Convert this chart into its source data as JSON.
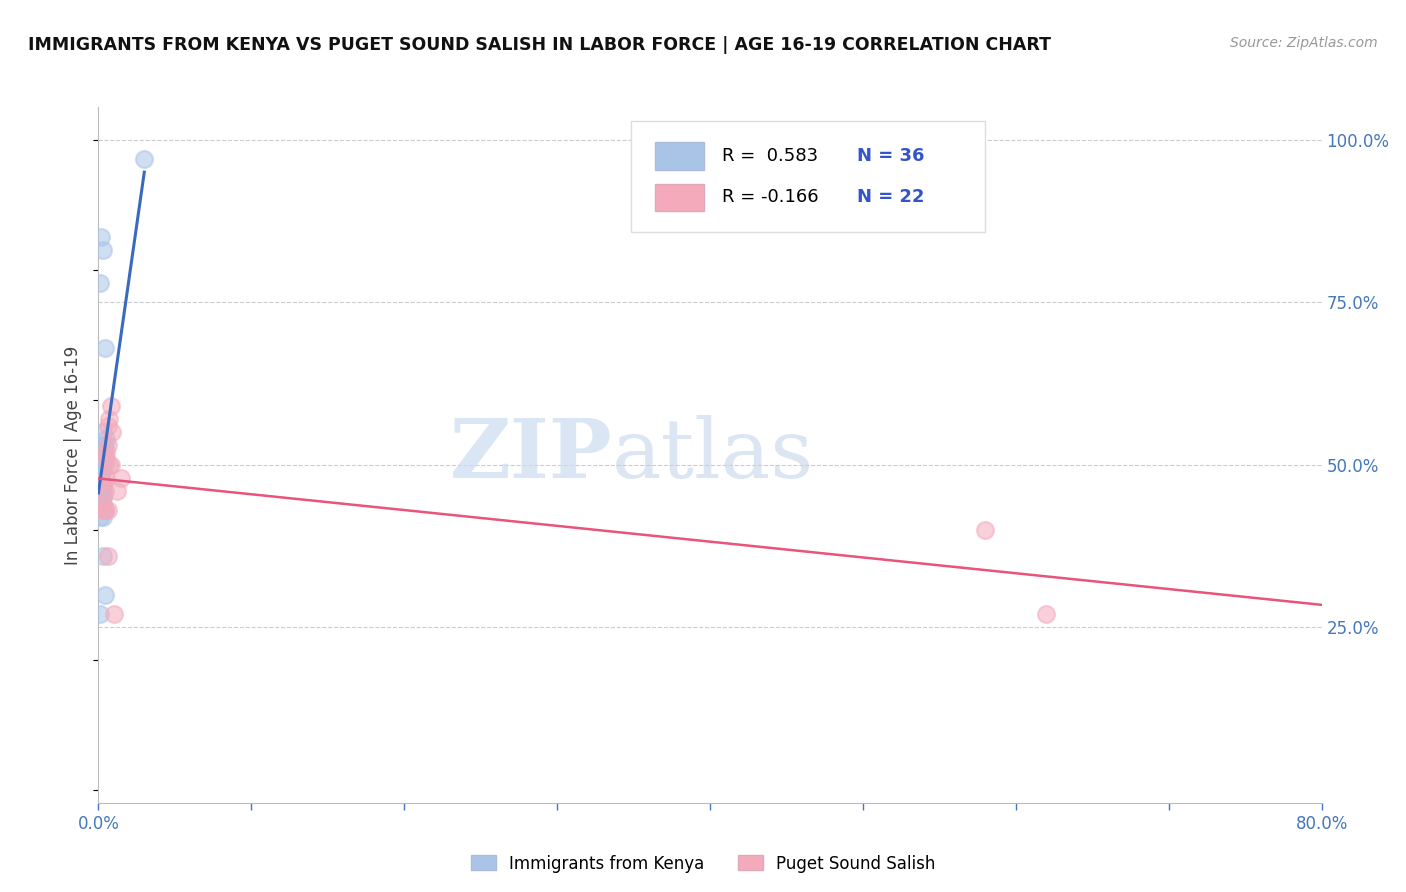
{
  "title": "IMMIGRANTS FROM KENYA VS PUGET SOUND SALISH IN LABOR FORCE | AGE 16-19 CORRELATION CHART",
  "source": "Source: ZipAtlas.com",
  "ylabel": "In Labor Force | Age 16-19",
  "xlim": [
    0.0,
    0.8
  ],
  "ylim": [
    -0.02,
    1.05
  ],
  "xticks": [
    0.0,
    0.1,
    0.2,
    0.3,
    0.4,
    0.5,
    0.6,
    0.7,
    0.8
  ],
  "xticklabels": [
    "0.0%",
    "",
    "",
    "",
    "",
    "",
    "",
    "",
    "80.0%"
  ],
  "yticks_right": [
    0.25,
    0.5,
    0.75,
    1.0
  ],
  "yticklabels_right": [
    "25.0%",
    "50.0%",
    "75.0%",
    "100.0%"
  ],
  "grid_color": "#cccccc",
  "background_color": "#ffffff",
  "watermark_zip": "ZIP",
  "watermark_atlas": "atlas",
  "legend_r1_label": "R =  0.583",
  "legend_r1_n": "N = 36",
  "legend_r2_label": "R = -0.166",
  "legend_r2_n": "N = 22",
  "blue_color": "#aac4e8",
  "pink_color": "#f4aabb",
  "blue_line_color": "#3a6abf",
  "pink_line_color": "#e8547a",
  "kenya_x": [
    0.001,
    0.003,
    0.004,
    0.002,
    0.001,
    0.002,
    0.003,
    0.003,
    0.004,
    0.005,
    0.002,
    0.003,
    0.004,
    0.003,
    0.002,
    0.001,
    0.004,
    0.002,
    0.003,
    0.003,
    0.002,
    0.003,
    0.004,
    0.001,
    0.003,
    0.004,
    0.001,
    0.003,
    0.004,
    0.002,
    0.003,
    0.002,
    0.001,
    0.03,
    0.003,
    0.002
  ],
  "kenya_y": [
    0.46,
    0.49,
    0.5,
    0.48,
    0.45,
    0.5,
    0.47,
    0.52,
    0.51,
    0.54,
    0.48,
    0.53,
    0.53,
    0.51,
    0.5,
    0.78,
    0.68,
    0.85,
    0.83,
    0.55,
    0.46,
    0.42,
    0.43,
    0.27,
    0.36,
    0.43,
    0.44,
    0.45,
    0.3,
    0.5,
    0.46,
    0.47,
    0.42,
    0.97,
    0.45,
    0.47
  ],
  "salish_x": [
    0.003,
    0.006,
    0.008,
    0.005,
    0.007,
    0.004,
    0.009,
    0.006,
    0.005,
    0.007,
    0.003,
    0.012,
    0.015,
    0.004,
    0.006,
    0.008,
    0.005,
    0.01,
    0.003,
    0.006,
    0.58,
    0.62
  ],
  "salish_y": [
    0.47,
    0.56,
    0.59,
    0.52,
    0.57,
    0.46,
    0.55,
    0.53,
    0.48,
    0.5,
    0.44,
    0.46,
    0.48,
    0.43,
    0.43,
    0.5,
    0.51,
    0.27,
    0.43,
    0.36,
    0.4,
    0.27
  ],
  "bottom_legend_kenya": "Immigrants from Kenya",
  "bottom_legend_salish": "Puget Sound Salish"
}
